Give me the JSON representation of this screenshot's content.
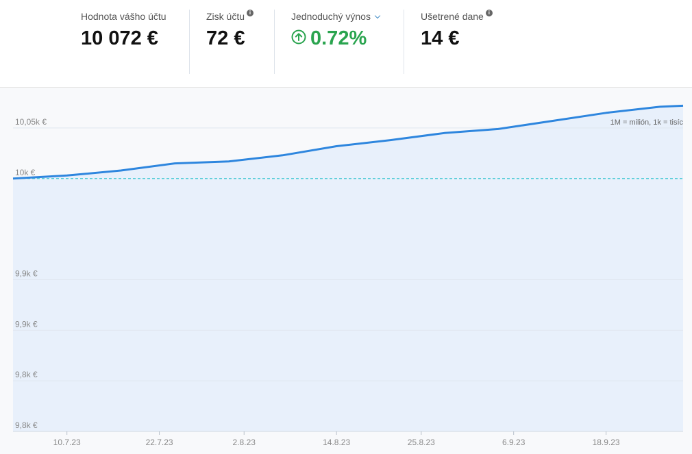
{
  "stats": {
    "account_value": {
      "label": "Hodnota vášho účtu",
      "value": "10 072 €"
    },
    "profit": {
      "label": "Zisk účtu",
      "value": "72 €",
      "info_icon": "info-icon"
    },
    "simple_return": {
      "label": "Jednoduchý výnos",
      "value": "0.72%",
      "color": "#2aa44f",
      "icon": "arrow-up-circle-icon",
      "dropdown_icon": "chevron-down-icon"
    },
    "tax_saved": {
      "label": "Ušetrené dane",
      "value": "14 €",
      "info_icon": "info-icon"
    }
  },
  "chart_note": "1M = milión, 1k = tisíc",
  "chart_data": {
    "type": "area",
    "title": "",
    "xlabel": "",
    "ylabel": "",
    "x_ticks": [
      "10.7.23",
      "22.7.23",
      "2.8.23",
      "14.8.23",
      "25.8.23",
      "6.9.23",
      "18.9.23"
    ],
    "y_ticks": [
      "9,8k €",
      "9,8k €",
      "9,9k €",
      "9,9k €",
      "10k €",
      "10,05k €"
    ],
    "ylim": [
      9750,
      10075
    ],
    "baseline": 10000,
    "series": [
      {
        "color": "#2e86de",
        "fill": "#e8f0fb",
        "points": [
          {
            "x": "2023-07-03",
            "y": 10000
          },
          {
            "x": "2023-07-10",
            "y": 10003
          },
          {
            "x": "2023-07-17",
            "y": 10008
          },
          {
            "x": "2023-07-24",
            "y": 10015
          },
          {
            "x": "2023-07-31",
            "y": 10017
          },
          {
            "x": "2023-08-07",
            "y": 10023
          },
          {
            "x": "2023-08-14",
            "y": 10032
          },
          {
            "x": "2023-08-21",
            "y": 10038
          },
          {
            "x": "2023-08-28",
            "y": 10045
          },
          {
            "x": "2023-09-04",
            "y": 10049
          },
          {
            "x": "2023-09-11",
            "y": 10057
          },
          {
            "x": "2023-09-18",
            "y": 10065
          },
          {
            "x": "2023-09-25",
            "y": 10071
          },
          {
            "x": "2023-09-28",
            "y": 10072
          }
        ]
      }
    ],
    "grid": true,
    "baseline_color": "#3fc8d4",
    "legend": "none"
  }
}
